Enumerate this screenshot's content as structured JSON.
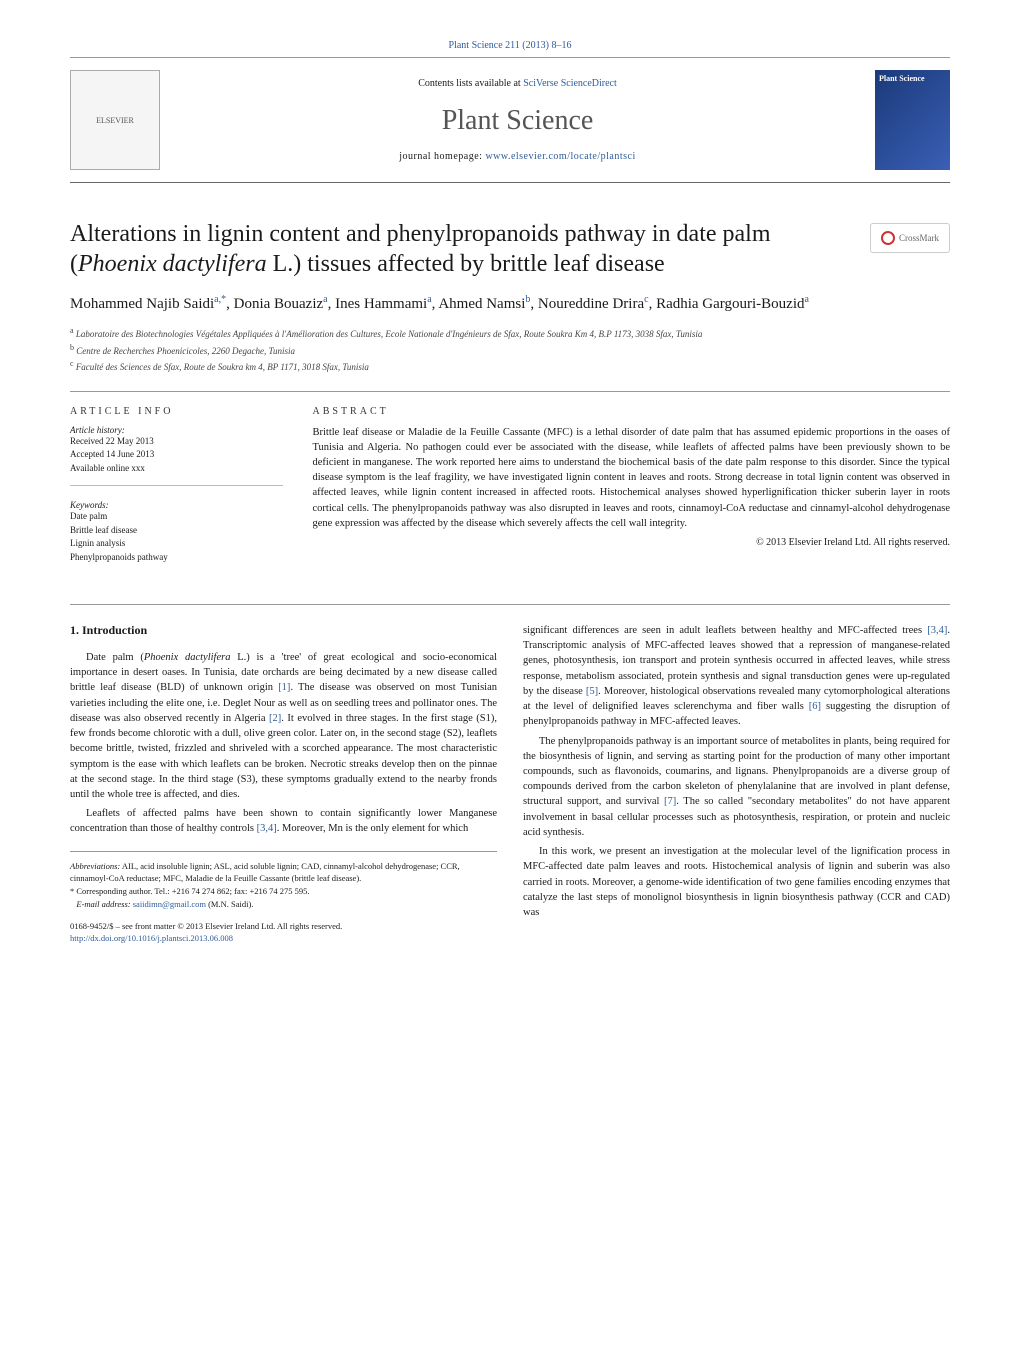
{
  "journal_ref": "Plant Science 211 (2013) 8–16",
  "header": {
    "contents_prefix": "Contents lists available at ",
    "contents_link": "SciVerse ScienceDirect",
    "journal_name": "Plant Science",
    "homepage_prefix": "journal homepage: ",
    "homepage_url": "www.elsevier.com/locate/plantsci",
    "elsevier": "ELSEVIER",
    "cover_label": "Plant Science"
  },
  "crossmark": "CrossMark",
  "title_html": "Alterations in lignin content and phenylpropanoids pathway in date palm (<em>Phoenix dactylifera</em> L.) tissues affected by brittle leaf disease",
  "authors_html": "Mohammed Najib Saidi<sup>a,*</sup>, Donia Bouaziz<sup>a</sup>, Ines Hammami<sup>a</sup>, Ahmed Namsi<sup>b</sup>, Noureddine Drira<sup>c</sup>, Radhia Gargouri-Bouzid<sup>a</sup>",
  "affiliations": [
    "<sup>a</sup> Laboratoire des Biotechnologies Végétales Appliquées à l'Amélioration des Cultures, Ecole Nationale d'Ingénieurs de Sfax, Route Soukra Km 4, B.P 1173, 3038 Sfax, Tunisia",
    "<sup>b</sup> Centre de Recherches Phoenicicoles, 2260 Degache, Tunisia",
    "<sup>c</sup> Faculté des Sciences de Sfax, Route de Soukra km 4, BP 1171, 3018 Sfax, Tunisia"
  ],
  "article_info": {
    "head": "ARTICLE INFO",
    "history_label": "Article history:",
    "history": [
      "Received 22 May 2013",
      "Accepted 14 June 2013",
      "Available online xxx"
    ],
    "keywords_label": "Keywords:",
    "keywords": [
      "Date palm",
      "Brittle leaf disease",
      "Lignin analysis",
      "Phenylpropanoids pathway"
    ]
  },
  "abstract": {
    "head": "ABSTRACT",
    "text": "Brittle leaf disease or Maladie de la Feuille Cassante (MFC) is a lethal disorder of date palm that has assumed epidemic proportions in the oases of Tunisia and Algeria. No pathogen could ever be associated with the disease, while leaflets of affected palms have been previously shown to be deficient in manganese. The work reported here aims to understand the biochemical basis of the date palm response to this disorder. Since the typical disease symptom is the leaf fragility, we have investigated lignin content in leaves and roots. Strong decrease in total lignin content was observed in affected leaves, while lignin content increased in affected roots. Histochemical analyses showed hyperlignification thicker suberin layer in roots cortical cells. The phenylpropanoids pathway was also disrupted in leaves and roots, cinnamoyl-CoA reductase and cinnamyl-alcohol dehydrogenase gene expression was affected by the disease which severely affects the cell wall integrity.",
    "copyright": "© 2013 Elsevier Ireland Ltd. All rights reserved."
  },
  "body": {
    "intro_heading": "1. Introduction",
    "left_paras": [
      "Date palm (<em>Phoenix dactylifera</em> L.) is a 'tree' of great ecological and socio-economical importance in desert oases. In Tunisia, date orchards are being decimated by a new disease called brittle leaf disease (BLD) of unknown origin <span class='cite'>[1]</span>. The disease was observed on most Tunisian varieties including the elite one, i.e. Deglet Nour as well as on seedling trees and pollinator ones. The disease was also observed recently in Algeria <span class='cite'>[2]</span>. It evolved in three stages. In the first stage (S1), few fronds become chlorotic with a dull, olive green color. Later on, in the second stage (S2), leaflets become brittle, twisted, frizzled and shriveled with a scorched appearance. The most characteristic symptom is the ease with which leaflets can be broken. Necrotic streaks develop then on the pinnae at the second stage. In the third stage (S3), these symptoms gradually extend to the nearby fronds until the whole tree is affected, and dies.",
      "Leaflets of affected palms have been shown to contain significantly lower Manganese concentration than those of healthy controls <span class='cite'>[3,4]</span>. Moreover, Mn is the only element for which"
    ],
    "right_paras": [
      "significant differences are seen in adult leaflets between healthy and MFC-affected trees <span class='cite'>[3,4]</span>. Transcriptomic analysis of MFC-affected leaves showed that a repression of manganese-related genes, photosynthesis, ion transport and protein synthesis occurred in affected leaves, while stress response, metabolism associated, protein synthesis and signal transduction genes were up-regulated by the disease <span class='cite'>[5]</span>. Moreover, histological observations revealed many cytomorphological alterations at the level of delignified leaves sclerenchyma and fiber walls <span class='cite'>[6]</span> suggesting the disruption of phenylpropanoids pathway in MFC-affected leaves.",
      "The phenylpropanoids pathway is an important source of metabolites in plants, being required for the biosynthesis of lignin, and serving as starting point for the production of many other important compounds, such as flavonoids, coumarins, and lignans. Phenylpropanoids are a diverse group of compounds derived from the carbon skeleton of phenylalanine that are involved in plant defense, structural support, and survival <span class='cite'>[7]</span>. The so called \"secondary metabolites\" do not have apparent involvement in basal cellular processes such as photosynthesis, respiration, or protein and nucleic acid synthesis.",
      "In this work, we present an investigation at the molecular level of the lignification process in MFC-affected date palm leaves and roots. Histochemical analysis of lignin and suberin was also carried in roots. Moreover, a genome-wide identification of two gene families encoding enzymes that catalyze the last steps of monolignol biosynthesis in lignin biosynthesis pathway (CCR and CAD) was"
    ]
  },
  "footnotes": {
    "abbrev_label": "Abbreviations:",
    "abbrev_text": " AIL, acid insoluble lignin; ASL, acid soluble lignin; CAD, cinnamyl-alcohol dehydrogenase; CCR, cinnamoyl-CoA reductase; MFC, Maladie de la Feuille Cassante (brittle leaf disease).",
    "corr_label": "* Corresponding author. Tel.: +216 74 274 862; fax: +216 74 275 595.",
    "email_label": "E-mail address: ",
    "email": "saiidimn@gmail.com",
    "email_suffix": " (M.N. Saidi)."
  },
  "footer": {
    "line1": "0168-9452/$ – see front matter © 2013 Elsevier Ireland Ltd. All rights reserved.",
    "doi": "http://dx.doi.org/10.1016/j.plantsci.2013.06.008"
  },
  "colors": {
    "link": "#2e5c9a",
    "text": "#1a1a1a",
    "rule": "#999999",
    "cover_bg1": "#1b3a7a",
    "cover_bg2": "#3a5fb5"
  }
}
